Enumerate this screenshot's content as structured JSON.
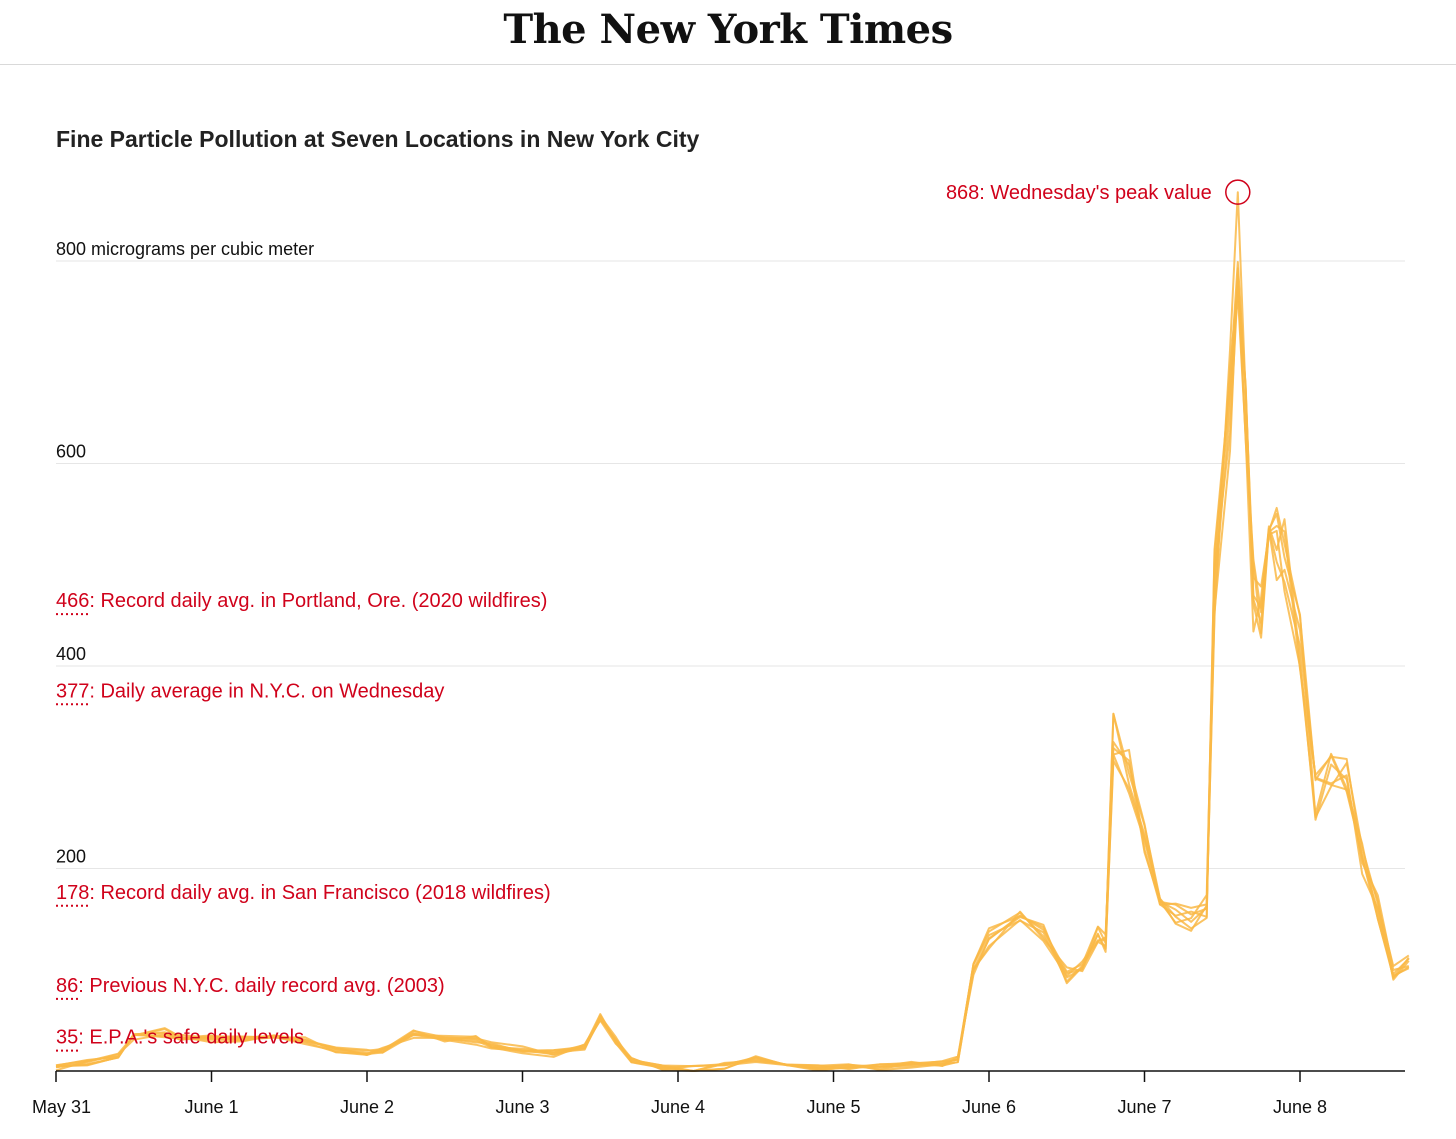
{
  "masthead": {
    "title": "The New York Times"
  },
  "chart_data": {
    "type": "line",
    "title": "Fine Particle Pollution at Seven Locations in New York City",
    "ylabel": "",
    "y_unit_label": "800 micrograms per cubic meter",
    "ylim": [
      0,
      860
    ],
    "y_ticks": [
      {
        "value": 800,
        "label": "800 micrograms per cubic meter"
      },
      {
        "value": 600,
        "label": "600"
      },
      {
        "value": 400,
        "label": "400"
      },
      {
        "value": 200,
        "label": "200"
      }
    ],
    "x_ticks": [
      "May 31",
      "June 1",
      "June 2",
      "June 3",
      "June 4",
      "June 5",
      "June 6",
      "June 7",
      "June 8"
    ],
    "line_color": "#f9b846",
    "annotation_color": "#d0021b",
    "reference_values": [
      {
        "value": 466,
        "label": "Record daily avg. in Portland, Ore. (2020 wildfires)"
      },
      {
        "value": 377,
        "label": "Daily average in N.Y.C. on Wednesday"
      },
      {
        "value": 178,
        "label": "Record daily avg. in San Francisco (2018 wildfires)"
      },
      {
        "value": 86,
        "label": "Previous N.Y.C. daily record avg. (2003)"
      },
      {
        "value": 35,
        "label": "E.P.A.'s safe daily levels"
      }
    ],
    "peak": {
      "value": 868,
      "label": "Wednesday's peak value",
      "day": 7.6
    },
    "base_series": [
      [
        0,
        3
      ],
      [
        0.2,
        8
      ],
      [
        0.4,
        15
      ],
      [
        0.5,
        35
      ],
      [
        0.7,
        38
      ],
      [
        0.8,
        32
      ],
      [
        1.0,
        33
      ],
      [
        1.2,
        33
      ],
      [
        1.4,
        35
      ],
      [
        1.6,
        30
      ],
      [
        1.8,
        22
      ],
      [
        2.0,
        18
      ],
      [
        2.1,
        22
      ],
      [
        2.3,
        35
      ],
      [
        2.5,
        32
      ],
      [
        2.7,
        30
      ],
      [
        2.8,
        25
      ],
      [
        3.0,
        20
      ],
      [
        3.2,
        18
      ],
      [
        3.4,
        25
      ],
      [
        3.5,
        55
      ],
      [
        3.6,
        30
      ],
      [
        3.7,
        10
      ],
      [
        3.9,
        3
      ],
      [
        4.1,
        2
      ],
      [
        4.3,
        5
      ],
      [
        4.5,
        12
      ],
      [
        4.7,
        6
      ],
      [
        4.9,
        3
      ],
      [
        5.1,
        4
      ],
      [
        5.3,
        4
      ],
      [
        5.5,
        6
      ],
      [
        5.7,
        8
      ],
      [
        5.8,
        12
      ],
      [
        5.9,
        100
      ],
      [
        6.0,
        130
      ],
      [
        6.2,
        150
      ],
      [
        6.35,
        140
      ],
      [
        6.5,
        95
      ],
      [
        6.6,
        105
      ],
      [
        6.7,
        135
      ],
      [
        6.75,
        125
      ],
      [
        6.8,
        330
      ],
      [
        6.9,
        295
      ],
      [
        7.0,
        230
      ],
      [
        7.1,
        175
      ],
      [
        7.2,
        155
      ],
      [
        7.3,
        150
      ],
      [
        7.4,
        160
      ],
      [
        7.45,
        480
      ],
      [
        7.55,
        660
      ],
      [
        7.6,
        790
      ],
      [
        7.65,
        630
      ],
      [
        7.7,
        470
      ],
      [
        7.75,
        460
      ],
      [
        7.8,
        500
      ],
      [
        7.85,
        520
      ],
      [
        7.9,
        510
      ],
      [
        8.0,
        420
      ],
      [
        8.1,
        270
      ],
      [
        8.2,
        300
      ],
      [
        8.3,
        290
      ],
      [
        8.4,
        210
      ],
      [
        8.5,
        160
      ],
      [
        8.6,
        95
      ],
      [
        8.7,
        110
      ]
    ]
  },
  "series_count": 7
}
